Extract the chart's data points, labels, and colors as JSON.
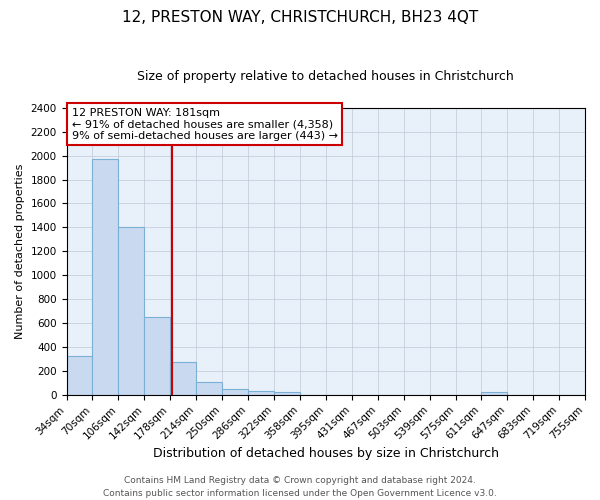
{
  "title": "12, PRESTON WAY, CHRISTCHURCH, BH23 4QT",
  "subtitle": "Size of property relative to detached houses in Christchurch",
  "xlabel": "Distribution of detached houses by size in Christchurch",
  "ylabel": "Number of detached properties",
  "bin_edges": [
    34,
    70,
    106,
    142,
    178,
    214,
    250,
    286,
    322,
    358,
    395,
    431,
    467,
    503,
    539,
    575,
    611,
    647,
    683,
    719,
    755
  ],
  "bar_heights": [
    325,
    1975,
    1400,
    655,
    275,
    105,
    45,
    30,
    20,
    0,
    0,
    0,
    0,
    0,
    0,
    0,
    25,
    0,
    0,
    0
  ],
  "bar_color": "#c9daf0",
  "bar_edge_color": "#7bafd4",
  "x_tick_labels": [
    "34sqm",
    "70sqm",
    "106sqm",
    "142sqm",
    "178sqm",
    "214sqm",
    "250sqm",
    "286sqm",
    "322sqm",
    "358sqm",
    "395sqm",
    "431sqm",
    "467sqm",
    "503sqm",
    "539sqm",
    "575sqm",
    "611sqm",
    "647sqm",
    "683sqm",
    "719sqm",
    "755sqm"
  ],
  "ylim": [
    0,
    2400
  ],
  "yticks": [
    0,
    200,
    400,
    600,
    800,
    1000,
    1200,
    1400,
    1600,
    1800,
    2000,
    2200,
    2400
  ],
  "xlim_left": 34,
  "xlim_right": 755,
  "property_size": 181,
  "vline_color": "#cc0000",
  "annotation_title": "12 PRESTON WAY: 181sqm",
  "annotation_line1": "← 91% of detached houses are smaller (4,358)",
  "annotation_line2": "9% of semi-detached houses are larger (443) →",
  "annotation_box_color": "#ffffff",
  "annotation_box_edge": "#cc0000",
  "bg_color": "#e8f0fa",
  "grid_color": "#c0c8d8",
  "footer_line1": "Contains HM Land Registry data © Crown copyright and database right 2024.",
  "footer_line2": "Contains public sector information licensed under the Open Government Licence v3.0.",
  "title_fontsize": 11,
  "subtitle_fontsize": 9,
  "xlabel_fontsize": 9,
  "ylabel_fontsize": 8,
  "tick_fontsize": 7.5,
  "annotation_fontsize": 8,
  "footer_fontsize": 6.5
}
